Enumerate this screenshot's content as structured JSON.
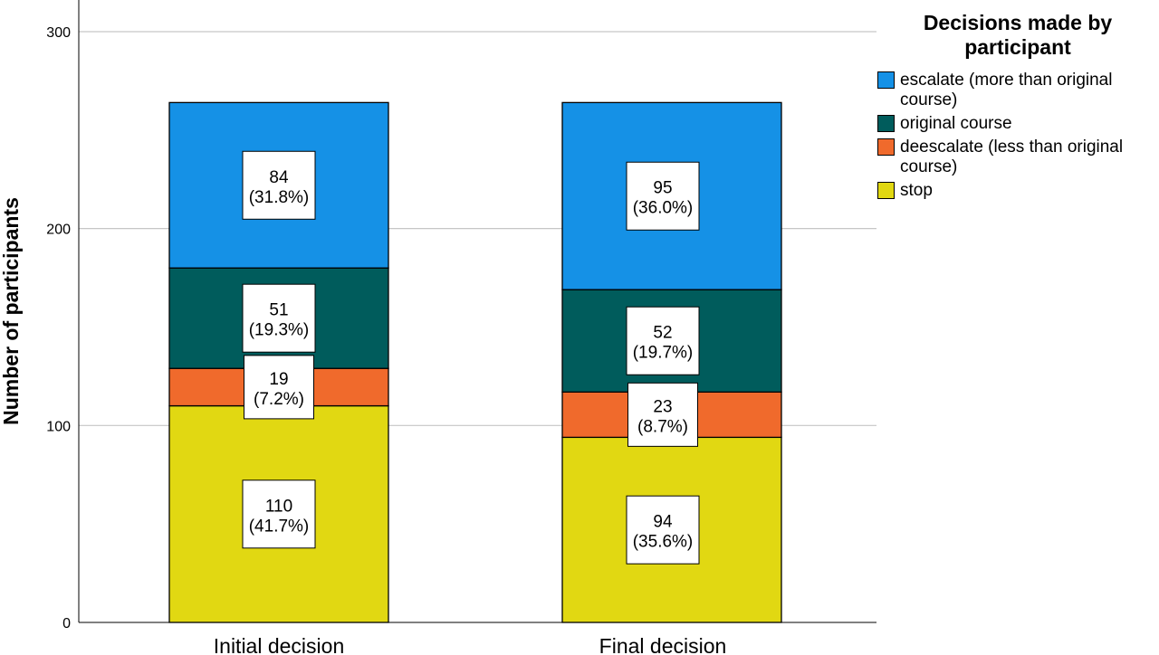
{
  "chart_data": {
    "type": "bar",
    "stacked": true,
    "categories": [
      "Initial decision",
      "Final decision"
    ],
    "ylabel": "Number of participants",
    "ylim": [
      0,
      320
    ],
    "yticks": [
      0,
      100,
      200,
      300
    ],
    "grid": true,
    "legend": {
      "title": "Decisions made by participant",
      "placement": "right"
    },
    "series": [
      {
        "name": "stop",
        "color": "#e1d812",
        "values": [
          110,
          94
        ],
        "labels": [
          "(41.7%)",
          "(35.6%)"
        ]
      },
      {
        "name": "deescalate (less than original course)",
        "color": "#f06a2c",
        "values": [
          19,
          23
        ],
        "labels": [
          "(7.2%)",
          "(8.7%)"
        ]
      },
      {
        "name": "original course",
        "color": "#005c5c",
        "values": [
          51,
          52
        ],
        "labels": [
          "(19.3%)",
          "(19.7%)"
        ]
      },
      {
        "name": "escalate (more than original course)",
        "color": "#1591e6",
        "values": [
          84,
          95
        ],
        "labels": [
          "(31.8%)",
          "(36.0%)"
        ]
      }
    ]
  },
  "legend_items": [
    {
      "label": "escalate (more than original course)",
      "color": "#1591e6"
    },
    {
      "label": "original course",
      "color": "#005c5c"
    },
    {
      "label": "deescalate (less than original course)",
      "color": "#f06a2c"
    },
    {
      "label": "stop",
      "color": "#e1d812"
    }
  ]
}
